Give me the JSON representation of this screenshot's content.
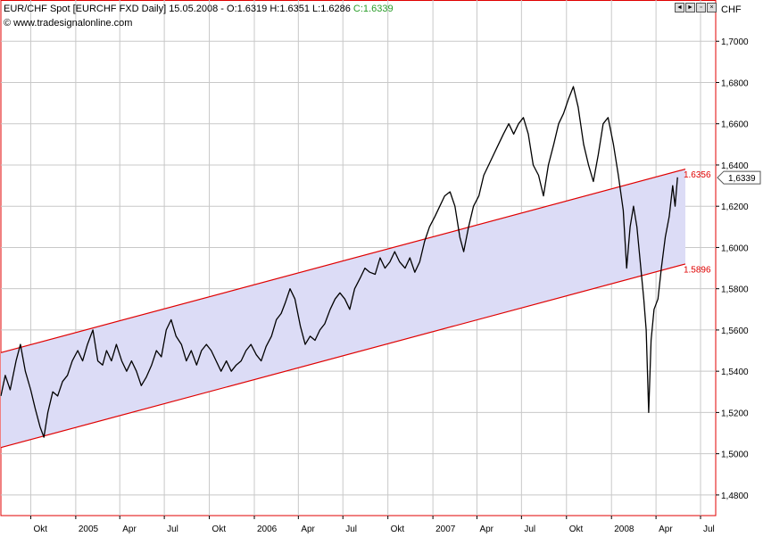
{
  "header": {
    "title": "EUR/CHF Spot [EURCHF FXD  Daily] 15.05.2008 - O:1.6319 H:1.6351 L:1.6286 ",
    "close_label": "C:1.6339",
    "source": "www.tradesignalonline.com"
  },
  "axis_unit": "CHF",
  "window_controls": [
    "◄",
    "►",
    "▫",
    "×"
  ],
  "colors": {
    "price_line": "#000000",
    "channel_line": "#e00000",
    "channel_fill": "#dcdcf6",
    "grid": "#c8c8c8",
    "frame": "#e00000",
    "close_label": "#2a9d2a"
  },
  "chart_data": {
    "type": "line",
    "title": "EUR/CHF Spot [EURCHF FXD  Daily]",
    "ylabel": "CHF",
    "ylim": [
      1.47,
      1.72
    ],
    "y_ticks": [
      "1,4800",
      "1,5000",
      "1,5200",
      "1,5400",
      "1,5600",
      "1,5800",
      "1,6000",
      "1,6200",
      "1,6400",
      "1,6600",
      "1,6800",
      "1,7000"
    ],
    "x_ticks": [
      {
        "label": "Okt",
        "date": "2004-10-01"
      },
      {
        "label": "2005",
        "date": "2005-01-01"
      },
      {
        "label": "Apr",
        "date": "2005-04-01"
      },
      {
        "label": "Jul",
        "date": "2005-07-01"
      },
      {
        "label": "Okt",
        "date": "2005-10-01"
      },
      {
        "label": "2006",
        "date": "2006-01-01"
      },
      {
        "label": "Apr",
        "date": "2006-04-01"
      },
      {
        "label": "Jul",
        "date": "2006-07-01"
      },
      {
        "label": "Okt",
        "date": "2006-10-01"
      },
      {
        "label": "2007",
        "date": "2007-01-01"
      },
      {
        "label": "Apr",
        "date": "2007-04-01"
      },
      {
        "label": "Jul",
        "date": "2007-07-01"
      },
      {
        "label": "Okt",
        "date": "2007-10-01"
      },
      {
        "label": "2008",
        "date": "2008-01-01"
      },
      {
        "label": "Apr",
        "date": "2008-04-01"
      },
      {
        "label": "Jul",
        "date": "2008-07-01"
      }
    ],
    "xlim": [
      "2004-08-01",
      "2008-08-01"
    ],
    "series": [
      {
        "name": "EUR/CHF",
        "points": [
          [
            "2004-08-01",
            1.528
          ],
          [
            "2004-08-10",
            1.538
          ],
          [
            "2004-08-20",
            1.531
          ],
          [
            "2004-09-01",
            1.545
          ],
          [
            "2004-09-10",
            1.553
          ],
          [
            "2004-09-20",
            1.54
          ],
          [
            "2004-10-01",
            1.531
          ],
          [
            "2004-10-10",
            1.522
          ],
          [
            "2004-10-20",
            1.513
          ],
          [
            "2004-10-28",
            1.508
          ],
          [
            "2004-11-05",
            1.52
          ],
          [
            "2004-11-15",
            1.53
          ],
          [
            "2004-11-25",
            1.528
          ],
          [
            "2004-12-05",
            1.535
          ],
          [
            "2004-12-15",
            1.538
          ],
          [
            "2004-12-25",
            1.545
          ],
          [
            "2005-01-05",
            1.55
          ],
          [
            "2005-01-15",
            1.545
          ],
          [
            "2005-01-25",
            1.553
          ],
          [
            "2005-02-05",
            1.56
          ],
          [
            "2005-02-15",
            1.545
          ],
          [
            "2005-02-25",
            1.543
          ],
          [
            "2005-03-05",
            1.55
          ],
          [
            "2005-03-15",
            1.545
          ],
          [
            "2005-03-25",
            1.553
          ],
          [
            "2005-04-05",
            1.545
          ],
          [
            "2005-04-15",
            1.54
          ],
          [
            "2005-04-25",
            1.545
          ],
          [
            "2005-05-05",
            1.54
          ],
          [
            "2005-05-15",
            1.533
          ],
          [
            "2005-05-25",
            1.537
          ],
          [
            "2005-06-05",
            1.543
          ],
          [
            "2005-06-15",
            1.55
          ],
          [
            "2005-06-25",
            1.547
          ],
          [
            "2005-07-05",
            1.56
          ],
          [
            "2005-07-15",
            1.565
          ],
          [
            "2005-07-25",
            1.557
          ],
          [
            "2005-08-05",
            1.553
          ],
          [
            "2005-08-15",
            1.545
          ],
          [
            "2005-08-25",
            1.55
          ],
          [
            "2005-09-05",
            1.543
          ],
          [
            "2005-09-15",
            1.55
          ],
          [
            "2005-09-25",
            1.553
          ],
          [
            "2005-10-05",
            1.55
          ],
          [
            "2005-10-15",
            1.545
          ],
          [
            "2005-10-25",
            1.54
          ],
          [
            "2005-11-05",
            1.545
          ],
          [
            "2005-11-15",
            1.54
          ],
          [
            "2005-11-25",
            1.543
          ],
          [
            "2005-12-05",
            1.545
          ],
          [
            "2005-12-15",
            1.55
          ],
          [
            "2005-12-25",
            1.553
          ],
          [
            "2006-01-05",
            1.548
          ],
          [
            "2006-01-15",
            1.545
          ],
          [
            "2006-01-25",
            1.552
          ],
          [
            "2006-02-05",
            1.557
          ],
          [
            "2006-02-15",
            1.565
          ],
          [
            "2006-02-25",
            1.568
          ],
          [
            "2006-03-05",
            1.573
          ],
          [
            "2006-03-15",
            1.58
          ],
          [
            "2006-03-25",
            1.575
          ],
          [
            "2006-04-05",
            1.562
          ],
          [
            "2006-04-15",
            1.553
          ],
          [
            "2006-04-25",
            1.557
          ],
          [
            "2006-05-05",
            1.555
          ],
          [
            "2006-05-15",
            1.56
          ],
          [
            "2006-05-25",
            1.563
          ],
          [
            "2006-06-05",
            1.57
          ],
          [
            "2006-06-15",
            1.575
          ],
          [
            "2006-06-25",
            1.578
          ],
          [
            "2006-07-05",
            1.575
          ],
          [
            "2006-07-15",
            1.57
          ],
          [
            "2006-07-25",
            1.58
          ],
          [
            "2006-08-05",
            1.585
          ],
          [
            "2006-08-15",
            1.59
          ],
          [
            "2006-08-25",
            1.588
          ],
          [
            "2006-09-05",
            1.587
          ],
          [
            "2006-09-15",
            1.595
          ],
          [
            "2006-09-25",
            1.59
          ],
          [
            "2006-10-05",
            1.593
          ],
          [
            "2006-10-15",
            1.598
          ],
          [
            "2006-10-25",
            1.593
          ],
          [
            "2006-11-05",
            1.59
          ],
          [
            "2006-11-15",
            1.595
          ],
          [
            "2006-11-25",
            1.588
          ],
          [
            "2006-12-05",
            1.593
          ],
          [
            "2006-12-15",
            1.603
          ],
          [
            "2006-12-25",
            1.61
          ],
          [
            "2007-01-05",
            1.615
          ],
          [
            "2007-01-15",
            1.62
          ],
          [
            "2007-01-25",
            1.625
          ],
          [
            "2007-02-05",
            1.627
          ],
          [
            "2007-02-15",
            1.62
          ],
          [
            "2007-02-25",
            1.605
          ],
          [
            "2007-03-05",
            1.598
          ],
          [
            "2007-03-15",
            1.61
          ],
          [
            "2007-03-25",
            1.62
          ],
          [
            "2007-04-05",
            1.625
          ],
          [
            "2007-04-15",
            1.635
          ],
          [
            "2007-04-25",
            1.64
          ],
          [
            "2007-05-05",
            1.645
          ],
          [
            "2007-05-15",
            1.65
          ],
          [
            "2007-05-25",
            1.655
          ],
          [
            "2007-06-05",
            1.66
          ],
          [
            "2007-06-15",
            1.655
          ],
          [
            "2007-06-25",
            1.66
          ],
          [
            "2007-07-05",
            1.663
          ],
          [
            "2007-07-15",
            1.655
          ],
          [
            "2007-07-25",
            1.64
          ],
          [
            "2007-08-05",
            1.635
          ],
          [
            "2007-08-15",
            1.625
          ],
          [
            "2007-08-25",
            1.64
          ],
          [
            "2007-09-05",
            1.65
          ],
          [
            "2007-09-15",
            1.66
          ],
          [
            "2007-09-25",
            1.665
          ],
          [
            "2007-10-05",
            1.672
          ],
          [
            "2007-10-15",
            1.678
          ],
          [
            "2007-10-25",
            1.668
          ],
          [
            "2007-11-05",
            1.65
          ],
          [
            "2007-11-15",
            1.64
          ],
          [
            "2007-11-25",
            1.632
          ],
          [
            "2007-12-05",
            1.645
          ],
          [
            "2007-12-15",
            1.66
          ],
          [
            "2007-12-25",
            1.663
          ],
          [
            "2008-01-05",
            1.65
          ],
          [
            "2008-01-15",
            1.635
          ],
          [
            "2008-01-25",
            1.618
          ],
          [
            "2008-02-01",
            1.59
          ],
          [
            "2008-02-08",
            1.61
          ],
          [
            "2008-02-15",
            1.62
          ],
          [
            "2008-02-22",
            1.61
          ],
          [
            "2008-03-01",
            1.59
          ],
          [
            "2008-03-07",
            1.575
          ],
          [
            "2008-03-12",
            1.56
          ],
          [
            "2008-03-17",
            1.52
          ],
          [
            "2008-03-22",
            1.555
          ],
          [
            "2008-03-28",
            1.57
          ],
          [
            "2008-04-05",
            1.575
          ],
          [
            "2008-04-12",
            1.59
          ],
          [
            "2008-04-20",
            1.605
          ],
          [
            "2008-04-28",
            1.615
          ],
          [
            "2008-05-05",
            1.63
          ],
          [
            "2008-05-10",
            1.62
          ],
          [
            "2008-05-15",
            1.634
          ]
        ]
      }
    ],
    "channel": {
      "upper": {
        "start": [
          "2004-08-01",
          1.549
        ],
        "end": [
          "2008-05-31",
          1.638
        ]
      },
      "lower": {
        "start": [
          "2004-08-01",
          1.503
        ],
        "end": [
          "2008-05-31",
          1.592
        ]
      }
    },
    "annotations": [
      {
        "text": "1.6356",
        "date": "2008-05-20",
        "value": 1.6356,
        "color": "#e00000"
      },
      {
        "text": "1.5896",
        "date": "2008-05-20",
        "value": 1.5896,
        "color": "#e00000"
      }
    ],
    "last_value_label": "1,6339",
    "last_value": 1.6339,
    "grid": true
  }
}
